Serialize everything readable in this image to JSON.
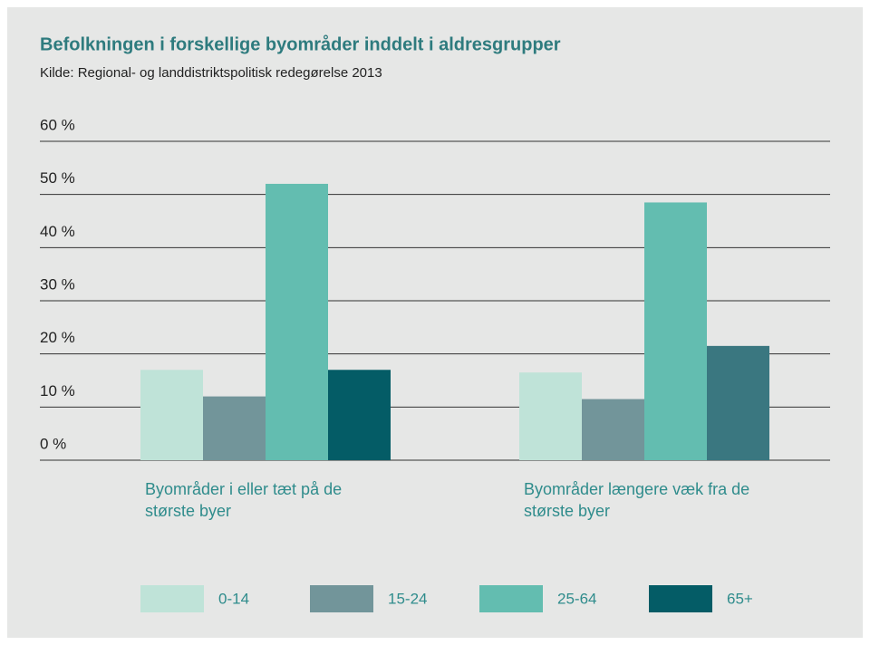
{
  "chart_data": {
    "type": "bar",
    "title": "Befolkningen i forskellige byområder inddelt i aldresgrupper",
    "subtitle": "Kilde: Regional- og landdistriktspolitisk redegørelse 2013",
    "categories": [
      "Byområder i eller tæt på de største byer",
      "Byområder længere væk fra de største byer"
    ],
    "series": [
      {
        "name": "0-14",
        "color": "#bfe3d8",
        "values": [
          17,
          16.5
        ]
      },
      {
        "name": "15-24",
        "color": "#72959a",
        "values": [
          12,
          11.5
        ]
      },
      {
        "name": "25-64",
        "color": "#63bdb0",
        "values": [
          52,
          48.5
        ]
      },
      {
        "name": "65+",
        "color": "#045c66",
        "colors": [
          "#045c66",
          "#3a7780"
        ],
        "values": [
          17,
          21.5
        ]
      }
    ],
    "ylim": [
      0,
      60
    ],
    "yticks": [
      {
        "value": 0,
        "label": "0 %"
      },
      {
        "value": 10,
        "label": "10 %"
      },
      {
        "value": 20,
        "label": "20 %"
      },
      {
        "value": 30,
        "label": "30 %"
      },
      {
        "value": 40,
        "label": "40 %"
      },
      {
        "value": 50,
        "label": "50 %"
      },
      {
        "value": 60,
        "label": "60 %"
      }
    ],
    "grid": true,
    "legend": "bottom"
  }
}
